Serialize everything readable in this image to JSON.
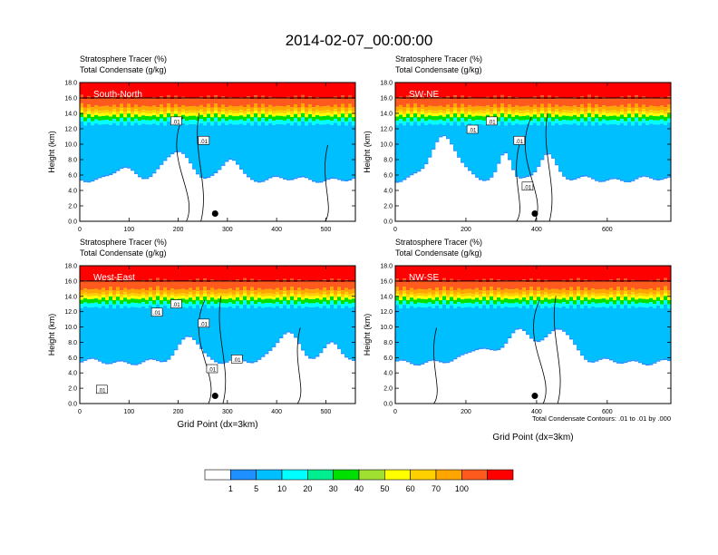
{
  "figure": {
    "title": "2014-02-07_00:00:00",
    "footnote": "Total Condensate Contours: .01 to .01 by .000"
  },
  "colorbar": {
    "labels": [
      "1",
      "5",
      "10",
      "20",
      "30",
      "40",
      "50",
      "60",
      "70",
      "100"
    ],
    "colors": [
      "#ffffff",
      "#1e90ff",
      "#00bfff",
      "#00ffff",
      "#00ee90",
      "#00e000",
      "#a0e030",
      "#ffff00",
      "#ffd000",
      "#ffa500",
      "#ff5a1e",
      "#ff0000"
    ]
  },
  "chart_data": [
    {
      "type": "heatmap",
      "panel_label": "South-North",
      "title_line1": "Stratosphere Tracer   (%)",
      "title_line2": "Total Condensate   (g/kg)",
      "ylabel": "Height (km)",
      "xlabel": "",
      "xlim": [
        0,
        560
      ],
      "ylim": [
        0,
        18
      ],
      "x_ticks": [
        0,
        100,
        200,
        300,
        400,
        500
      ],
      "y_ticks": [
        "0.0",
        "2.0",
        "4.0",
        "6.0",
        "8.0",
        "10.0",
        "12.0",
        "14.0",
        "16.0",
        "18.0"
      ],
      "contour_labels": [
        ".01",
        ".01"
      ],
      "marker": {
        "x": 275,
        "y": 1.0
      }
    },
    {
      "type": "heatmap",
      "panel_label": "SW-NE",
      "title_line1": "Stratosphere Tracer   (%)",
      "title_line2": "Total Condensate   (g/kg)",
      "ylabel": "Height (km)",
      "xlabel": "",
      "xlim": [
        0,
        780
      ],
      "ylim": [
        0,
        18
      ],
      "x_ticks": [
        0,
        200,
        400,
        600
      ],
      "y_ticks": [
        "0.0",
        "2.0",
        "4.0",
        "6.0",
        "8.0",
        "10.0",
        "12.0",
        "14.0",
        "16.0",
        "18.0"
      ],
      "contour_labels": [
        ".01",
        ".01",
        ".01",
        ".01"
      ],
      "marker": {
        "x": 395,
        "y": 1.0
      }
    },
    {
      "type": "heatmap",
      "panel_label": "West-East",
      "title_line1": "Stratosphere Tracer   (%)",
      "title_line2": "Total Condensate   (g/kg)",
      "ylabel": "Height (km)",
      "xlabel": "Grid Point (dx=3km)",
      "xlim": [
        0,
        560
      ],
      "ylim": [
        0,
        18
      ],
      "x_ticks": [
        0,
        100,
        200,
        300,
        400,
        500
      ],
      "y_ticks": [
        "0.0",
        "2.0",
        "4.0",
        "6.0",
        "8.0",
        "10.0",
        "12.0",
        "14.0",
        "16.0",
        "18.0"
      ],
      "contour_labels": [
        ".01",
        ".01",
        ".01",
        ".01",
        ".01",
        ".01"
      ],
      "marker": {
        "x": 275,
        "y": 1.0
      }
    },
    {
      "type": "heatmap",
      "panel_label": "NW-SE",
      "title_line1": "Stratosphere Tracer   (%)",
      "title_line2": "Total Condensate   (g/kg)",
      "ylabel": "Height (km)",
      "xlabel": "Grid Point (dx=3km)",
      "xlim": [
        0,
        780
      ],
      "ylim": [
        0,
        18
      ],
      "x_ticks": [
        0,
        200,
        400,
        600
      ],
      "y_ticks": [
        "0.0",
        "2.0",
        "4.0",
        "6.0",
        "8.0",
        "10.0",
        "12.0",
        "14.0",
        "16.0",
        "18.0"
      ],
      "contour_labels": [],
      "marker": {
        "x": 395,
        "y": 1.0
      }
    }
  ]
}
